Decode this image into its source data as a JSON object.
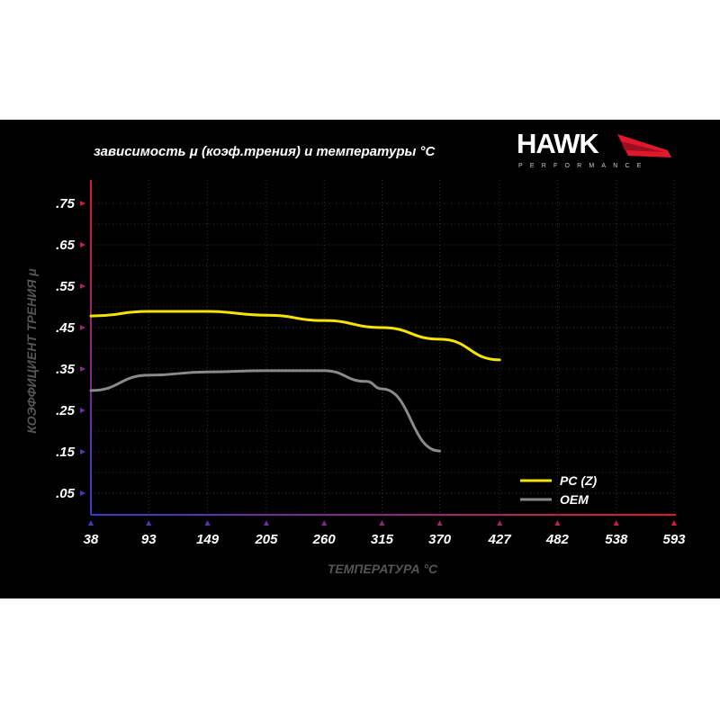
{
  "brand": {
    "logo_text": "HAWK",
    "logo_sub": "PERFORMANCE",
    "accent": "#e0182d"
  },
  "chart_data": {
    "type": "line",
    "title": "зависимость μ (коэф.трения) и температуры °C",
    "xlabel": "ТЕМПЕРАТУРА °C",
    "ylabel": "КОЭФФИЦИЕНТ ТРЕНИЯ μ",
    "x_ticks": [
      "38",
      "93",
      "149",
      "205",
      "260",
      "315",
      "370",
      "427",
      "482",
      "538",
      "593"
    ],
    "y_ticks": [
      ".75",
      ".65",
      ".55",
      ".45",
      ".35",
      ".25",
      ".15",
      ".05"
    ],
    "xlim": [
      38,
      593
    ],
    "ylim": [
      0.0,
      0.8
    ],
    "grid": true,
    "legend_position": "bottom-right",
    "series": [
      {
        "name": "PC (Z)",
        "color": "#f5e400",
        "x": [
          38,
          93,
          149,
          205,
          260,
          315,
          370,
          427
        ],
        "values": [
          0.478,
          0.489,
          0.489,
          0.48,
          0.467,
          0.45,
          0.422,
          0.372
        ]
      },
      {
        "name": "OEM",
        "color": "#8a8a8a",
        "x": [
          38,
          93,
          149,
          205,
          260,
          300,
          315,
          370
        ],
        "values": [
          0.298,
          0.335,
          0.343,
          0.346,
          0.346,
          0.32,
          0.302,
          0.152
        ]
      }
    ]
  }
}
